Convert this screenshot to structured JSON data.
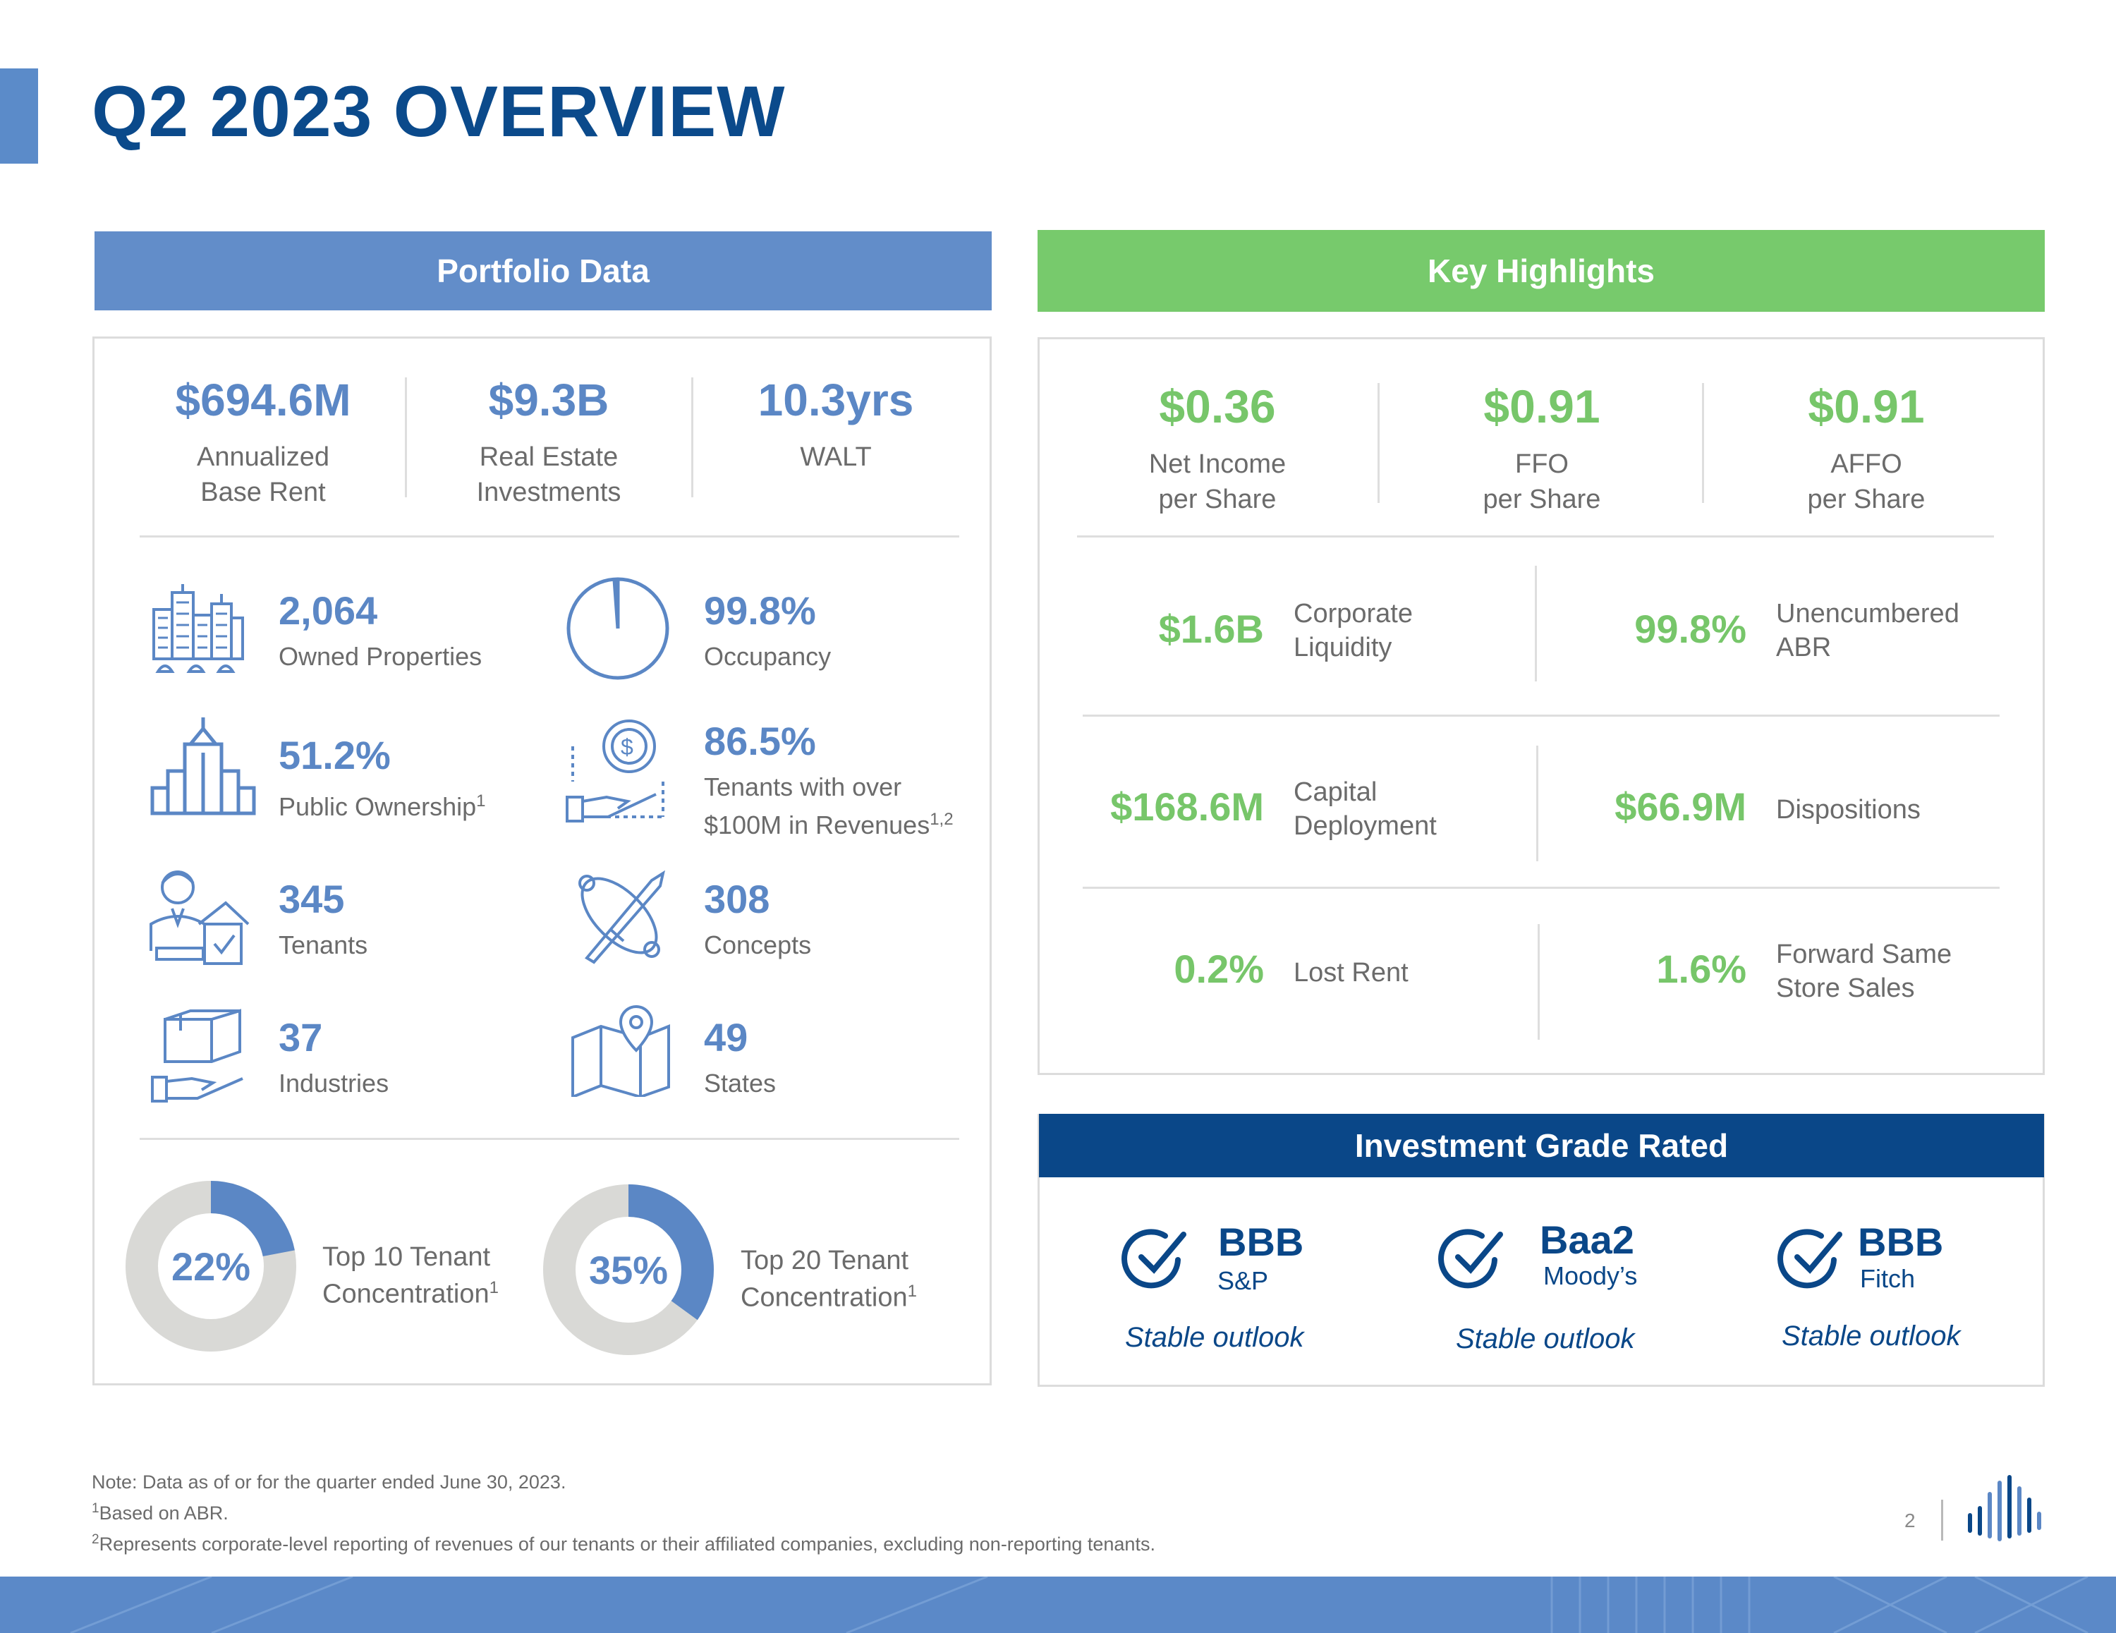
{
  "page": {
    "title": "Q2 2023 OVERVIEW",
    "page_number": "2"
  },
  "portfolio": {
    "header": "Portfolio Data",
    "top_stats": [
      {
        "value": "$694.6M",
        "label": "Annualized\nBase Rent"
      },
      {
        "value": "$9.3B",
        "label": "Real Estate\nInvestments"
      },
      {
        "value": "10.3yrs",
        "label": "WALT"
      }
    ],
    "metrics": [
      {
        "value": "2,064",
        "label": "Owned Properties",
        "sup": "",
        "icon": "city-buildings-icon"
      },
      {
        "value": "99.8%",
        "label": "Occupancy",
        "sup": "",
        "icon": "pie-occupancy-icon"
      },
      {
        "value": "51.2%",
        "label": "Public Ownership",
        "sup": "1",
        "icon": "skyscraper-icon"
      },
      {
        "value": "86.5%",
        "label": "Tenants with over",
        "label2": "$100M in Revenues",
        "sup": "1,2",
        "icon": "hand-dollar-coin-icon"
      },
      {
        "value": "345",
        "label": "Tenants",
        "sup": "",
        "icon": "tenant-house-icon"
      },
      {
        "value": "308",
        "label": "Concepts",
        "sup": "",
        "icon": "design-pen-icon"
      },
      {
        "value": "37",
        "label": "Industries",
        "sup": "",
        "icon": "hand-box-icon"
      },
      {
        "value": "49",
        "label": "States",
        "sup": "",
        "icon": "map-pin-icon"
      }
    ],
    "concentration": [
      {
        "value": "22%",
        "percent": 22,
        "label": "Top 10 Tenant",
        "label2": "Concentration",
        "sup": "1"
      },
      {
        "value": "35%",
        "percent": 35,
        "label": "Top 20 Tenant",
        "label2": "Concentration",
        "sup": "1"
      }
    ]
  },
  "highlights": {
    "header": "Key Highlights",
    "top_stats": [
      {
        "value": "$0.36",
        "label": "Net Income\nper Share"
      },
      {
        "value": "$0.91",
        "label": "FFO\nper Share"
      },
      {
        "value": "$0.91",
        "label": "AFFO\nper Share"
      }
    ],
    "pairs": [
      {
        "value": "$1.6B",
        "label": "Corporate\nLiquidity"
      },
      {
        "value": "99.8%",
        "label": "Unencumbered\nABR"
      },
      {
        "value": "$168.6M",
        "label": "Capital\nDeployment"
      },
      {
        "value": "$66.9M",
        "label": "Dispositions"
      },
      {
        "value": "0.2%",
        "label": "Lost Rent"
      },
      {
        "value": "1.6%",
        "label": "Forward Same\nStore Sales"
      }
    ]
  },
  "ratings": {
    "header": "Investment Grade Rated",
    "items": [
      {
        "rating": "BBB",
        "agency": "S&P",
        "outlook": "Stable outlook"
      },
      {
        "rating": "Baa2",
        "agency": "Moody’s",
        "outlook": "Stable outlook"
      },
      {
        "rating": "BBB",
        "agency": "Fitch",
        "outlook": "Stable outlook"
      }
    ]
  },
  "notes": {
    "line1": "Note: Data as of or for the quarter ended June 30, 2023.",
    "line2_sup": "1",
    "line2": "Based on ABR.",
    "line3_sup": "2",
    "line3": "Represents corporate-level reporting of revenues of our tenants or their affiliated companies, excluding non-reporting tenants."
  },
  "colors": {
    "navy": "#0a4788",
    "blue": "#5b87c5",
    "green": "#77c66a",
    "gray_ring": "#d9d9d6"
  }
}
